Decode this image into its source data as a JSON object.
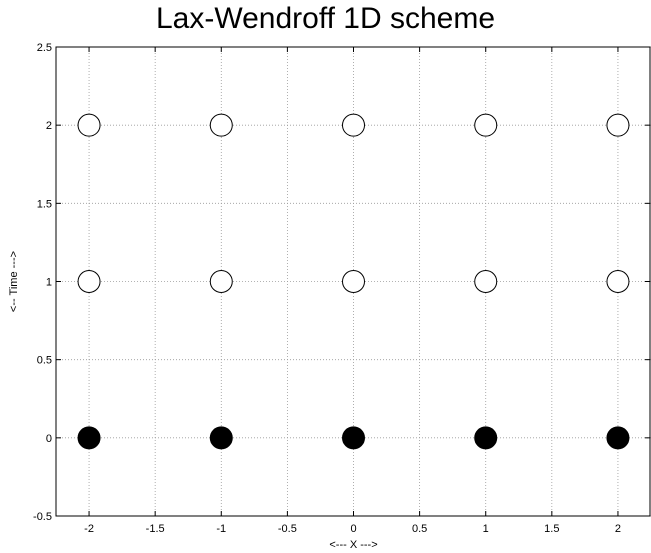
{
  "chart_data": {
    "type": "scatter",
    "title": "Lax-Wendroff 1D scheme",
    "xlabel": "<--- X --->",
    "ylabel": "<-- Time --->",
    "xlim": [
      -2.25,
      2.25
    ],
    "ylim": [
      -0.5,
      2.5
    ],
    "xticks": [
      "-2",
      "-1.5",
      "-1",
      "-0.5",
      "0",
      "0.5",
      "1",
      "1.5",
      "2"
    ],
    "yticks": [
      "-0.5",
      "0",
      "0.5",
      "1",
      "1.5",
      "2",
      "2.5"
    ],
    "grid": true,
    "series": [
      {
        "marker": "filled-circle",
        "color": "#000000",
        "x": [
          -2,
          -1,
          0,
          1,
          2
        ],
        "y": [
          0,
          0,
          0,
          0,
          0
        ]
      },
      {
        "marker": "open-circle",
        "color": "#000000",
        "x": [
          -2,
          -1,
          0,
          1,
          2
        ],
        "y": [
          1,
          1,
          1,
          1,
          1
        ]
      },
      {
        "marker": "open-circle",
        "color": "#000000",
        "x": [
          -2,
          -1,
          0,
          1,
          2
        ],
        "y": [
          2,
          2,
          2,
          2,
          2
        ]
      }
    ]
  }
}
